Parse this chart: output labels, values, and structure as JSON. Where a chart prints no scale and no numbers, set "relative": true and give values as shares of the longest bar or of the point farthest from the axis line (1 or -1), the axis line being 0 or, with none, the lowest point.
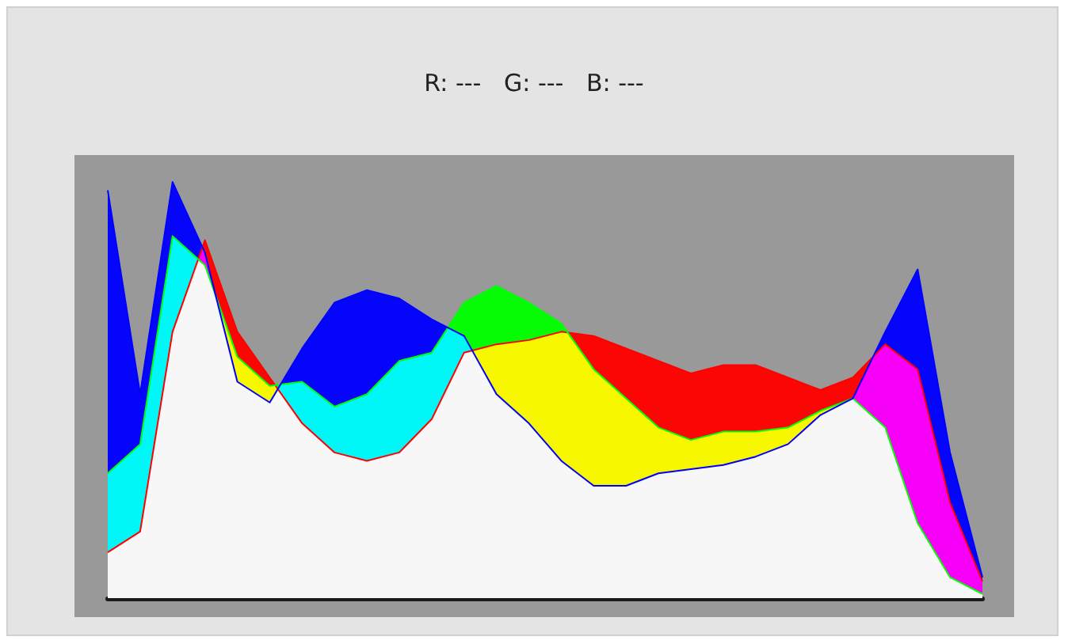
{
  "chart_data": {
    "type": "area",
    "title": "R: ---   G: ---   B: ---",
    "relative": true,
    "grid": false,
    "categories": [
      null,
      null,
      null,
      null,
      null,
      null,
      null,
      null,
      null,
      null,
      null,
      null,
      null,
      null,
      null,
      null,
      null,
      null,
      null,
      null,
      null,
      null,
      null,
      null,
      null,
      null,
      null,
      null
    ],
    "series": [
      {
        "color": "#ff0000",
        "values": [
          0.11,
          0.16,
          0.64,
          0.86,
          0.64,
          0.53,
          0.42,
          0.35,
          0.33,
          0.35,
          0.43,
          0.59,
          0.61,
          0.62,
          0.64,
          0.63,
          0.6,
          0.57,
          0.54,
          0.56,
          0.56,
          0.53,
          0.5,
          0.53,
          0.61,
          0.55,
          0.23,
          0.04
        ]
      },
      {
        "color": "#00ff00",
        "values": [
          0.3,
          0.37,
          0.87,
          0.8,
          0.58,
          0.51,
          0.52,
          0.46,
          0.49,
          0.57,
          0.59,
          0.71,
          0.75,
          0.71,
          0.66,
          0.55,
          0.48,
          0.41,
          0.38,
          0.4,
          0.4,
          0.41,
          0.45,
          0.48,
          0.41,
          0.18,
          0.05,
          0.01
        ]
      },
      {
        "color": "#0000ff",
        "values": [
          0.98,
          0.49,
          1,
          0.83,
          0.52,
          0.47,
          0.6,
          0.71,
          0.74,
          0.72,
          0.67,
          0.63,
          0.49,
          0.42,
          0.33,
          0.27,
          0.27,
          0.3,
          0.31,
          0.32,
          0.34,
          0.37,
          0.44,
          0.48,
          0.64,
          0.79,
          0.35,
          0.05
        ]
      }
    ]
  }
}
